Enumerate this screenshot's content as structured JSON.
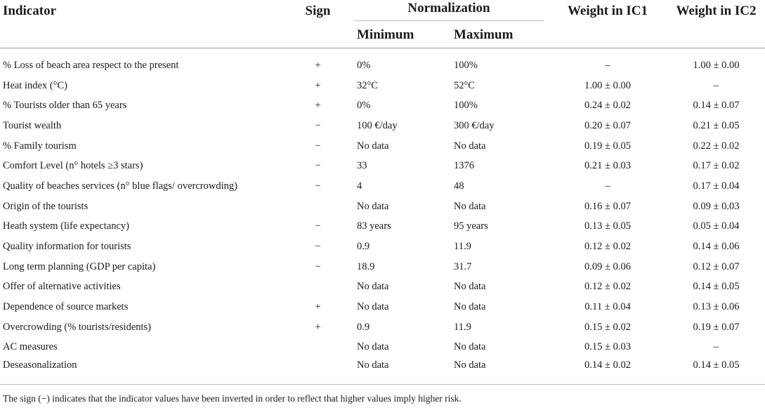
{
  "headers": {
    "indicator": "Indicator",
    "sign": "Sign",
    "normalization": "Normalization",
    "minimum": "Minimum",
    "maximum": "Maximum",
    "weight_ic1": "Weight in IC1",
    "weight_ic2": "Weight in IC2"
  },
  "rows": [
    {
      "indicator": "% Loss of beach area respect to the present",
      "sign": "+",
      "min": "0%",
      "max": "100%",
      "ic1": "–",
      "ic2": "1.00 ± 0.00"
    },
    {
      "indicator": "Heat index (°C)",
      "sign": "+",
      "min": "32°C",
      "max": "52°C",
      "ic1": "1.00 ± 0.00",
      "ic2": "–"
    },
    {
      "indicator": "% Tourists older than 65 years",
      "sign": "+",
      "min": "0%",
      "max": "100%",
      "ic1": "0.24 ± 0.02",
      "ic2": "0.14 ± 0.07"
    },
    {
      "indicator": "Tourist wealth",
      "sign": "−",
      "min": "100 €/day",
      "max": "300 €/day",
      "ic1": "0.20 ± 0.07",
      "ic2": "0.21 ± 0.05"
    },
    {
      "indicator": "% Family tourism",
      "sign": "−",
      "min": "No data",
      "max": "No data",
      "ic1": "0.19 ± 0.05",
      "ic2": "0.22 ± 0.02"
    },
    {
      "indicator": "Comfort Level (n° hotels ≥3 stars)",
      "sign": "−",
      "min": "33",
      "max": "1376",
      "ic1": "0.21 ± 0.03",
      "ic2": "0.17 ± 0.02"
    },
    {
      "indicator": "Quality of beaches services (n° blue flags/ overcrowding)",
      "sign": "−",
      "min": "4",
      "max": "48",
      "ic1": "–",
      "ic2": "0.17 ± 0.04"
    },
    {
      "indicator": "Origin of the tourists",
      "sign": "",
      "min": "No data",
      "max": "No data",
      "ic1": "0.16 ± 0.07",
      "ic2": "0.09 ± 0.03"
    },
    {
      "indicator": "Heath system (life expectancy)",
      "sign": "−",
      "min": "83 years",
      "max": "95 years",
      "ic1": "0.13 ± 0.05",
      "ic2": "0.05 ± 0.04"
    },
    {
      "indicator": "Quality information for tourists",
      "sign": "−",
      "min": "0.9",
      "max": "11.9",
      "ic1": "0.12 ± 0.02",
      "ic2": "0.14 ± 0.06"
    },
    {
      "indicator": "Long term planning (GDP per capita)",
      "sign": "−",
      "min": "18.9",
      "max": "31.7",
      "ic1": "0.09 ± 0.06",
      "ic2": "0.12 ± 0.07"
    },
    {
      "indicator": "Offer of alternative activities",
      "sign": "",
      "min": "No data",
      "max": "No data",
      "ic1": "0.12 ± 0.02",
      "ic2": "0.14 ± 0.05"
    },
    {
      "indicator": "Dependence of source markets",
      "sign": "+",
      "min": "No data",
      "max": "No data",
      "ic1": "0.11 ± 0.04",
      "ic2": "0.13 ± 0.06"
    },
    {
      "indicator": "Overcrowding (% tourists/residents)",
      "sign": "+",
      "min": "0.9",
      "max": "11.9",
      "ic1": "0.15 ± 0.02",
      "ic2": "0.19 ± 0.07"
    },
    {
      "indicator": "AC measures",
      "sign": "",
      "min": "No data",
      "max": "No data",
      "ic1": "0.15 ± 0.03",
      "ic2": "–"
    },
    {
      "indicator": "Deseasonalization",
      "sign": "",
      "min": "No data",
      "max": "No data",
      "ic1": "0.14 ± 0.02",
      "ic2": "0.14 ± 0.05"
    }
  ],
  "footnote": "The sign (−) indicates that the indicator values have been inverted in order to reflect that higher values imply higher risk."
}
